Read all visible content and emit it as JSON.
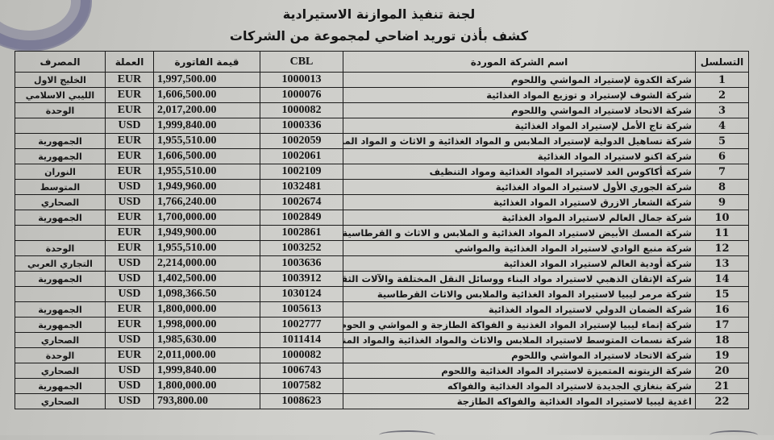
{
  "header": {
    "title": "لجنة تنفيذ الموازنة الاستيرادية",
    "subtitle": "كشف بأذن توريد اضاحي لمجموعة من الشركات"
  },
  "columns": {
    "serial": "التسلسل",
    "company": "اسم الشركة الموردة",
    "cbl": "CBL",
    "amount": "قيمة الفاتورة",
    "currency": "العملة",
    "bank": "المصرف"
  },
  "rows": [
    {
      "serial": "1",
      "company": "شركة الكدوة لإستيراد المواشي واللحوم",
      "cbl": "1000013",
      "amount": "1,997,500.00",
      "currency": "EUR",
      "bank": "الخليج الاول"
    },
    {
      "serial": "2",
      "company": "شركة الشوف لإستيراد و توزيع المواد الغذائية",
      "cbl": "1000076",
      "amount": "1,606,500.00",
      "currency": "EUR",
      "bank": "الليبي الاسلامي"
    },
    {
      "serial": "3",
      "company": "شركة الاتحاد لاستيراد المواشي واللحوم",
      "cbl": "1000082",
      "amount": "2,017,200.00",
      "currency": "EUR",
      "bank": "الوحدة"
    },
    {
      "serial": "4",
      "company": "شركة تاج الأمل لإستيراد المواد الغذائية",
      "cbl": "1000336",
      "amount": "1,999,840.00",
      "currency": "USD",
      "bank": ""
    },
    {
      "serial": "5",
      "company": "شركة تساهيل الدولية لإستيراد الملابس و المواد الغذائية و الاثاث و المواد المنزلية",
      "cbl": "1002059",
      "amount": "1,955,510.00",
      "currency": "EUR",
      "bank": "الجمهورية"
    },
    {
      "serial": "6",
      "company": "شركة اكنو لاستيراد المواد الغذائية",
      "cbl": "1002061",
      "amount": "1,606,500.00",
      "currency": "EUR",
      "bank": "الجمهورية"
    },
    {
      "serial": "7",
      "company": "شركة أكاكوس الغد لاستيراد المواد الغذائية ومواد التنظيف",
      "cbl": "1002109",
      "amount": "1,955,510.00",
      "currency": "EUR",
      "bank": "النوران"
    },
    {
      "serial": "8",
      "company": "شركة الجوري الأول لاستيراد المواد الغذائية",
      "cbl": "1032481",
      "amount": "1,949,960.00",
      "currency": "USD",
      "bank": "المتوسط"
    },
    {
      "serial": "9",
      "company": "شركة الشعار الازرق لاستيراد المواد الغذائية",
      "cbl": "1002674",
      "amount": "1,766,240.00",
      "currency": "USD",
      "bank": "الصحاري"
    },
    {
      "serial": "10",
      "company": "شركة جمال العالم  لاستيراد المواد الغذائية",
      "cbl": "1002849",
      "amount": "1,700,000.00",
      "currency": "EUR",
      "bank": "الجمهورية"
    },
    {
      "serial": "11",
      "company": "شركة المسك الأبيض لاستيراد المواد الغذائية و الملابس و الاثاث و القرطاسية",
      "cbl": "1002861",
      "amount": "1,949,900.00",
      "currency": "EUR",
      "bank": ""
    },
    {
      "serial": "12",
      "company": "شركة منبع الوادي لاستيراد المواد الغذائية والمواشي",
      "cbl": "1003252",
      "amount": "1,955,510.00",
      "currency": "EUR",
      "bank": "الوحدة"
    },
    {
      "serial": "13",
      "company": "شركة أودية العالم لاستيراد المواد الغذائية",
      "cbl": "1003636",
      "amount": "2,214,000.00",
      "currency": "USD",
      "bank": "التجاري العربي"
    },
    {
      "serial": "14",
      "company": "شركة الإتقان الذهبي لاستيراد مواد البناء ووسائل النقل المختلفة والآلات الثقيلة",
      "cbl": "1003912",
      "amount": "1,402,500.00",
      "currency": "USD",
      "bank": "الجمهورية"
    },
    {
      "serial": "15",
      "company": "شركة مرمر ليبيا لاستيراد المواد الغذائية والملابس والاثاث القرطاسية",
      "cbl": "1030124",
      "amount": "1,098,366.50",
      "currency": "USD",
      "bank": ""
    },
    {
      "serial": "16",
      "company": "شركة الضمان الدولي لاستيراد المواد الغذائية",
      "cbl": "1005613",
      "amount": "1,800,000.00",
      "currency": "EUR",
      "bank": "الجمهورية"
    },
    {
      "serial": "17",
      "company": "شركة إنماء ليبيا لإستيراد المواد الغذنية و الفواكة الطازجة و المواشي و الحوم",
      "cbl": "1002777",
      "amount": "1,998,000.00",
      "currency": "EUR",
      "bank": "الجمهورية"
    },
    {
      "serial": "18",
      "company": "شركة نسمات المتوسط لاستيراد الملابس والاثاث والمواد الغذائية والمواد المنزلية",
      "cbl": "1011414",
      "amount": "1,985,630.00",
      "currency": "USD",
      "bank": "الصحاري"
    },
    {
      "serial": "19",
      "company": "شركة الاتحاد لاستيراد المواشي واللحوم",
      "cbl": "1000082",
      "amount": "2,011,000.00",
      "currency": "EUR",
      "bank": "الوحدة"
    },
    {
      "serial": "20",
      "company": "شركة الزيتونه المتميزة لاستيراد المواد الغذائية واللحوم",
      "cbl": "1006743",
      "amount": "1,999,840.00",
      "currency": "USD",
      "bank": "الصحاري"
    },
    {
      "serial": "21",
      "company": "شركة بنغازي الجديدة لاستيراد المواد الغذائية والفواكه",
      "cbl": "1007582",
      "amount": "1,800,000.00",
      "currency": "USD",
      "bank": "الجمهورية"
    },
    {
      "serial": "22",
      "company": "اغدية ليبيا لاستيراد المواد الغذائية والفواكه الطازجة",
      "cbl": "1008623",
      "amount": "793,800.00",
      "currency": "USD",
      "bank": "الصحاري"
    }
  ]
}
